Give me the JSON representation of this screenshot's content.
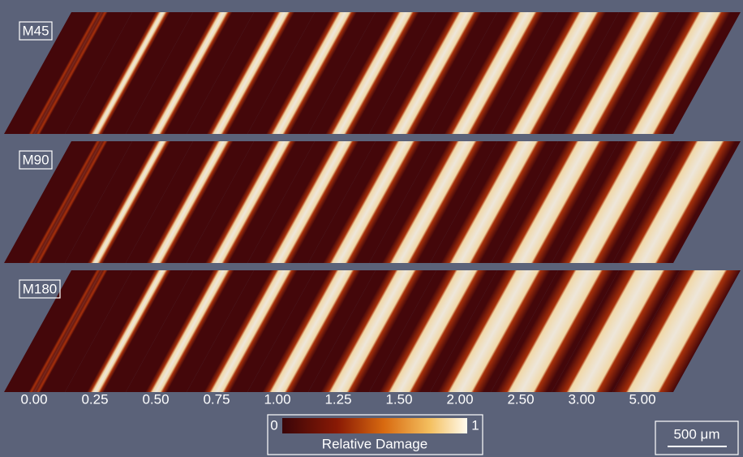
{
  "rows": [
    {
      "label": "M45"
    },
    {
      "label": "M90"
    },
    {
      "label": "M180"
    }
  ],
  "columns": [
    "0.00",
    "0.25",
    "0.50",
    "0.75",
    "1.00",
    "1.25",
    "1.50",
    "2.00",
    "2.50",
    "3.00",
    "5.00"
  ],
  "colorbar": {
    "min_label": "0",
    "max_label": "1",
    "title": "Relative Damage"
  },
  "scale_bar": {
    "label": "500 μm"
  }
}
